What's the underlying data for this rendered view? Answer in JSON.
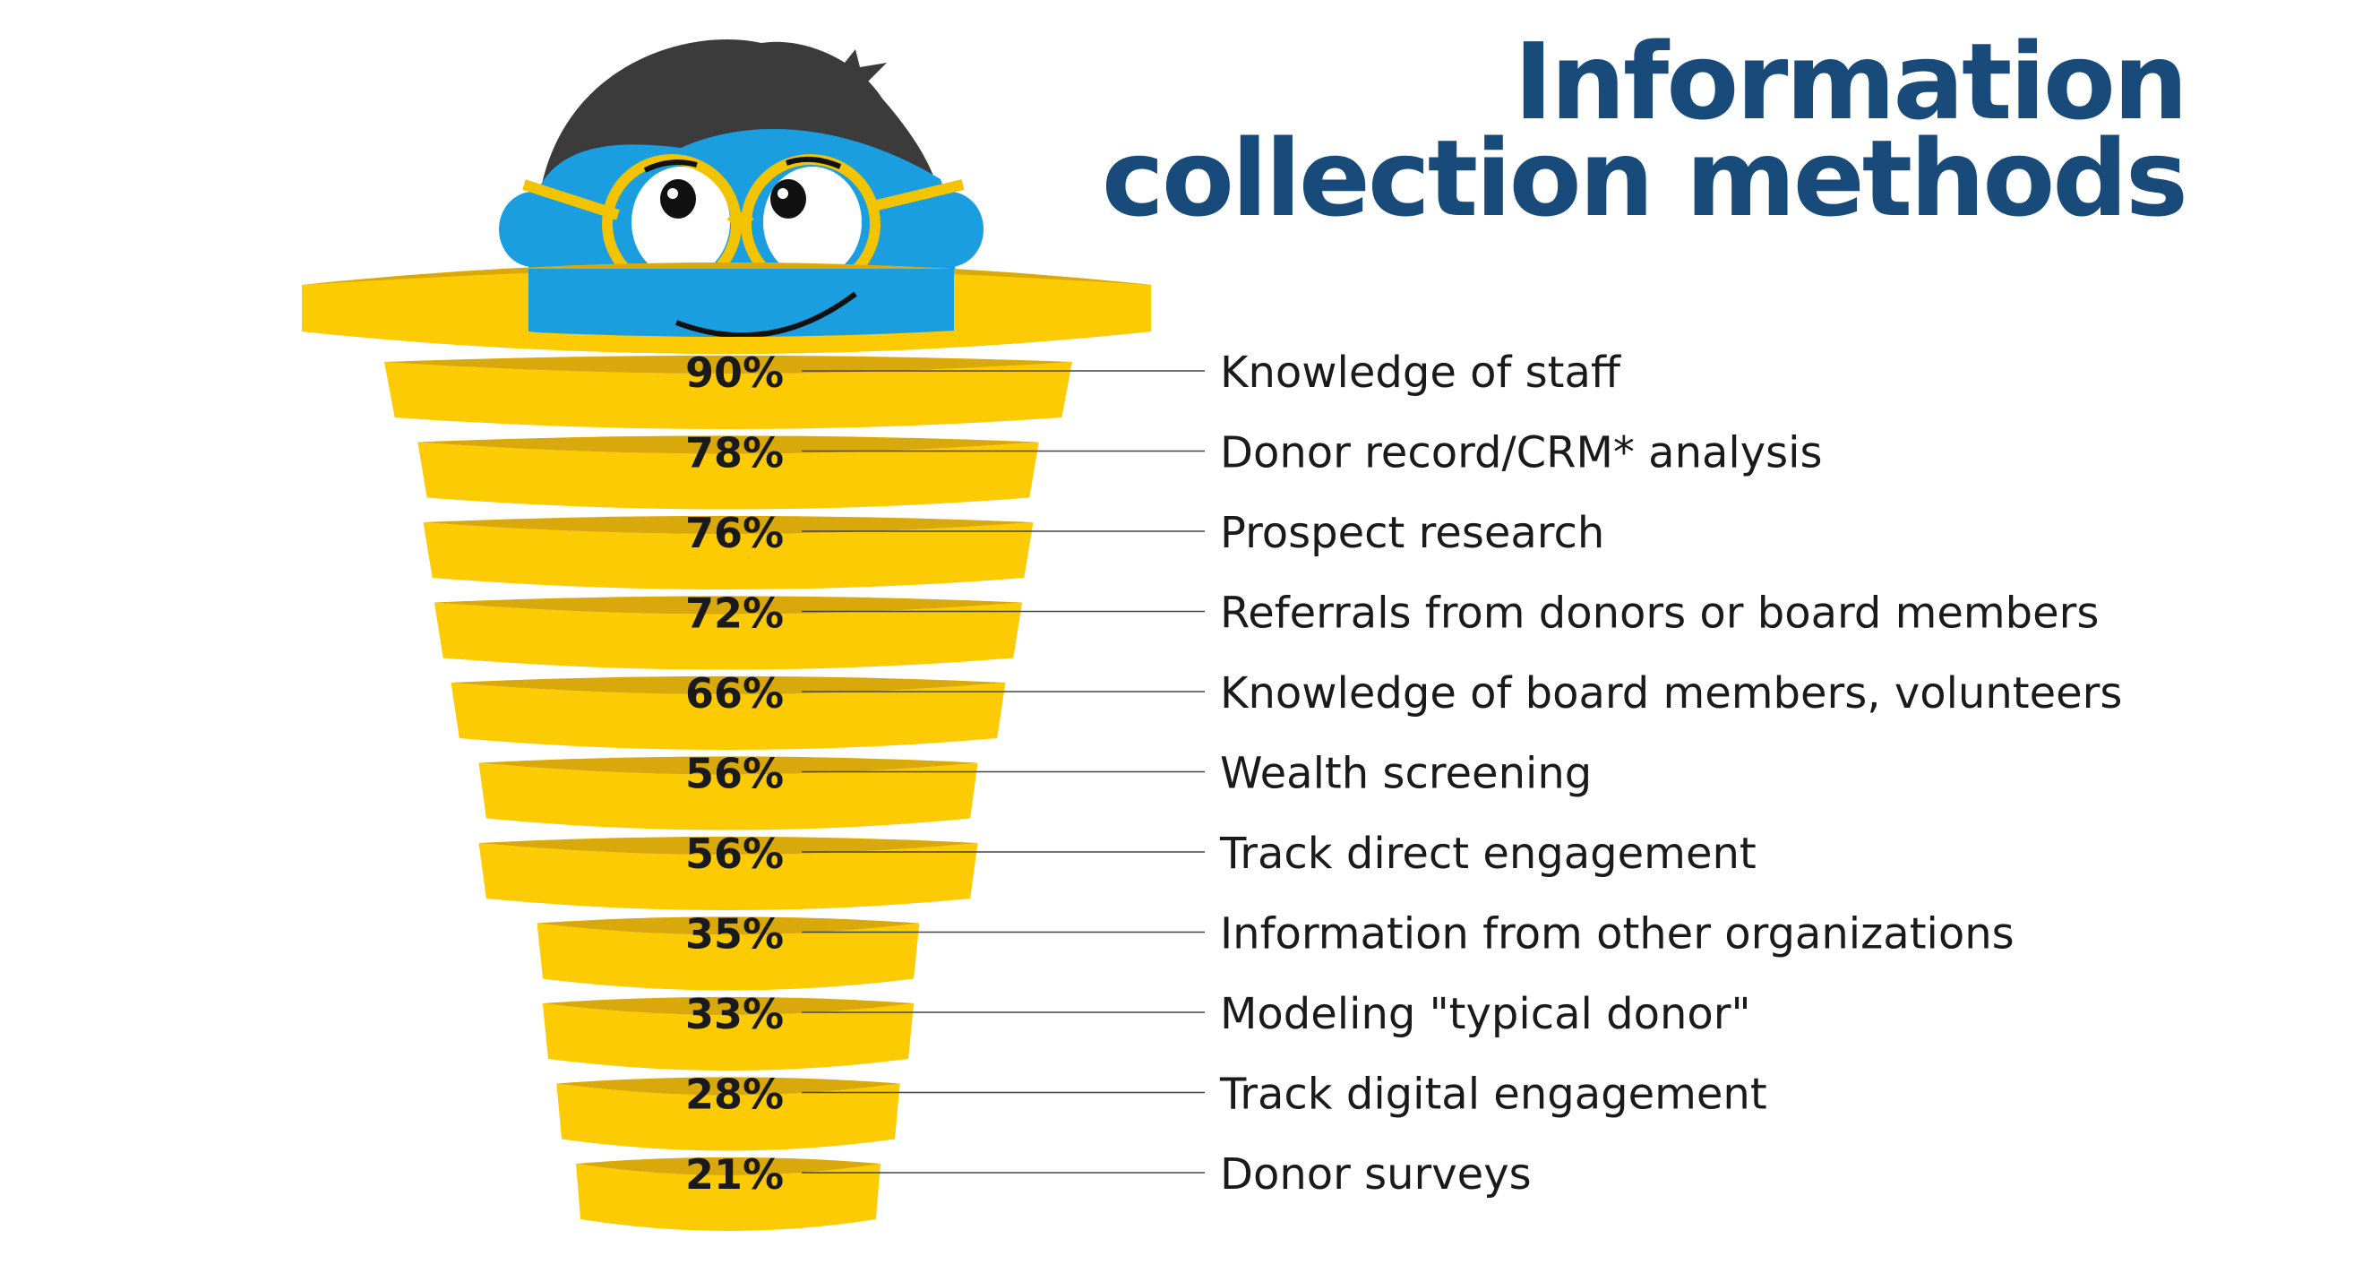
{
  "title": {
    "line1": "Information",
    "line2": "collection methods"
  },
  "colors": {
    "title": "#184b7a",
    "ring_light": "#fccb03",
    "ring_dark": "#d9a80a",
    "face": "#1a9ee0",
    "hair": "#3b3b3b",
    "glasses": "#f2c400",
    "text": "#1a1a1a",
    "leader_line": "#444444"
  },
  "mascot": {
    "icon": "cartoon-character-face-icon"
  },
  "chart_data": {
    "type": "funnel",
    "title": "Information collection methods",
    "unit": "%",
    "categories": [
      "Knowledge of staff",
      "Donor record/CRM* analysis",
      "Prospect research",
      "Referrals from donors or board members",
      "Knowledge of board members, volunteers",
      "Wealth screening",
      "Track direct engagement",
      "Information from other organizations",
      "Modeling \"typical donor\"",
      "Track digital engagement",
      "Donor surveys"
    ],
    "values": [
      90,
      78,
      76,
      72,
      66,
      56,
      56,
      35,
      33,
      28,
      21
    ],
    "value_labels": [
      "90%",
      "78%",
      "76%",
      "72%",
      "66%",
      "56%",
      "56%",
      "35%",
      "33%",
      "28%",
      "21%"
    ]
  }
}
